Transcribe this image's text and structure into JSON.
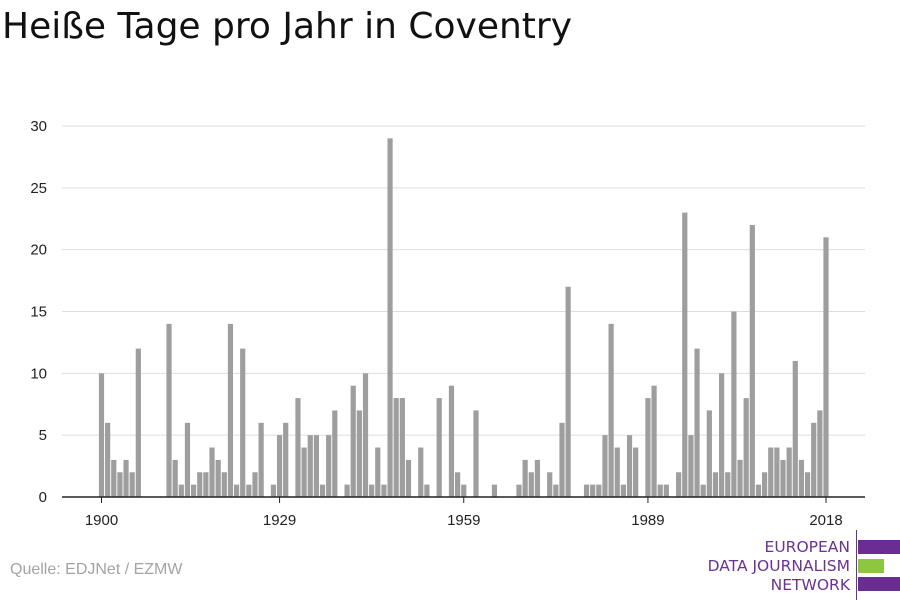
{
  "title": "Heiße Tage pro Jahr in Coventry",
  "source": "Quelle: EDJNet / EZMW",
  "logo": {
    "lines": [
      "EUROPEAN",
      "DATA JOURNALISM",
      "NETWORK"
    ],
    "colors": {
      "purple": "#6b2d91",
      "green": "#8dc63f"
    }
  },
  "colors": {
    "bar": "#9e9e9e",
    "grid": "#dddddd",
    "axis": "#222222"
  },
  "chart_data": {
    "type": "bar",
    "title": "Heiße Tage pro Jahr in Coventry",
    "xlabel": "",
    "ylabel": "",
    "ylim": [
      0,
      30
    ],
    "xlim": [
      1900,
      2018
    ],
    "yticks": [
      0,
      5,
      10,
      15,
      20,
      25,
      30
    ],
    "xticks": [
      1900,
      1929,
      1959,
      1989,
      2018
    ],
    "grid": true,
    "legend": "none",
    "x": [
      1900,
      1901,
      1902,
      1903,
      1904,
      1905,
      1906,
      1907,
      1908,
      1909,
      1910,
      1911,
      1912,
      1913,
      1914,
      1915,
      1916,
      1917,
      1918,
      1919,
      1920,
      1921,
      1922,
      1923,
      1924,
      1925,
      1926,
      1927,
      1928,
      1929,
      1930,
      1931,
      1932,
      1933,
      1934,
      1935,
      1936,
      1937,
      1938,
      1939,
      1940,
      1941,
      1942,
      1943,
      1944,
      1945,
      1946,
      1947,
      1948,
      1949,
      1950,
      1951,
      1952,
      1953,
      1954,
      1955,
      1956,
      1957,
      1958,
      1959,
      1960,
      1961,
      1962,
      1963,
      1964,
      1965,
      1966,
      1967,
      1968,
      1969,
      1970,
      1971,
      1972,
      1973,
      1974,
      1975,
      1976,
      1977,
      1978,
      1979,
      1980,
      1981,
      1982,
      1983,
      1984,
      1985,
      1986,
      1987,
      1988,
      1989,
      1990,
      1991,
      1992,
      1993,
      1994,
      1995,
      1996,
      1997,
      1998,
      1999,
      2000,
      2001,
      2002,
      2003,
      2004,
      2005,
      2006,
      2007,
      2008,
      2009,
      2010,
      2011,
      2012,
      2013,
      2014,
      2015,
      2016,
      2017,
      2018
    ],
    "values": [
      10,
      6,
      3,
      2,
      3,
      2,
      12,
      0,
      0,
      0,
      0,
      14,
      3,
      1,
      6,
      1,
      2,
      2,
      4,
      3,
      2,
      14,
      1,
      12,
      1,
      2,
      6,
      0,
      1,
      5,
      6,
      0,
      8,
      4,
      5,
      5,
      1,
      5,
      7,
      0,
      1,
      9,
      7,
      10,
      1,
      4,
      1,
      29,
      8,
      8,
      3,
      0,
      4,
      1,
      0,
      8,
      0,
      9,
      2,
      1,
      0,
      7,
      0,
      0,
      1,
      0,
      0,
      0,
      1,
      3,
      2,
      3,
      0,
      2,
      1,
      6,
      17,
      0,
      0,
      1,
      1,
      1,
      5,
      14,
      4,
      1,
      5,
      4,
      0,
      8,
      9,
      1,
      1,
      0,
      2,
      23,
      5,
      12,
      1,
      7,
      2,
      10,
      2,
      15,
      3,
      8,
      22,
      1,
      2,
      4,
      4,
      3,
      4,
      11,
      3,
      2,
      6,
      7,
      21
    ]
  }
}
